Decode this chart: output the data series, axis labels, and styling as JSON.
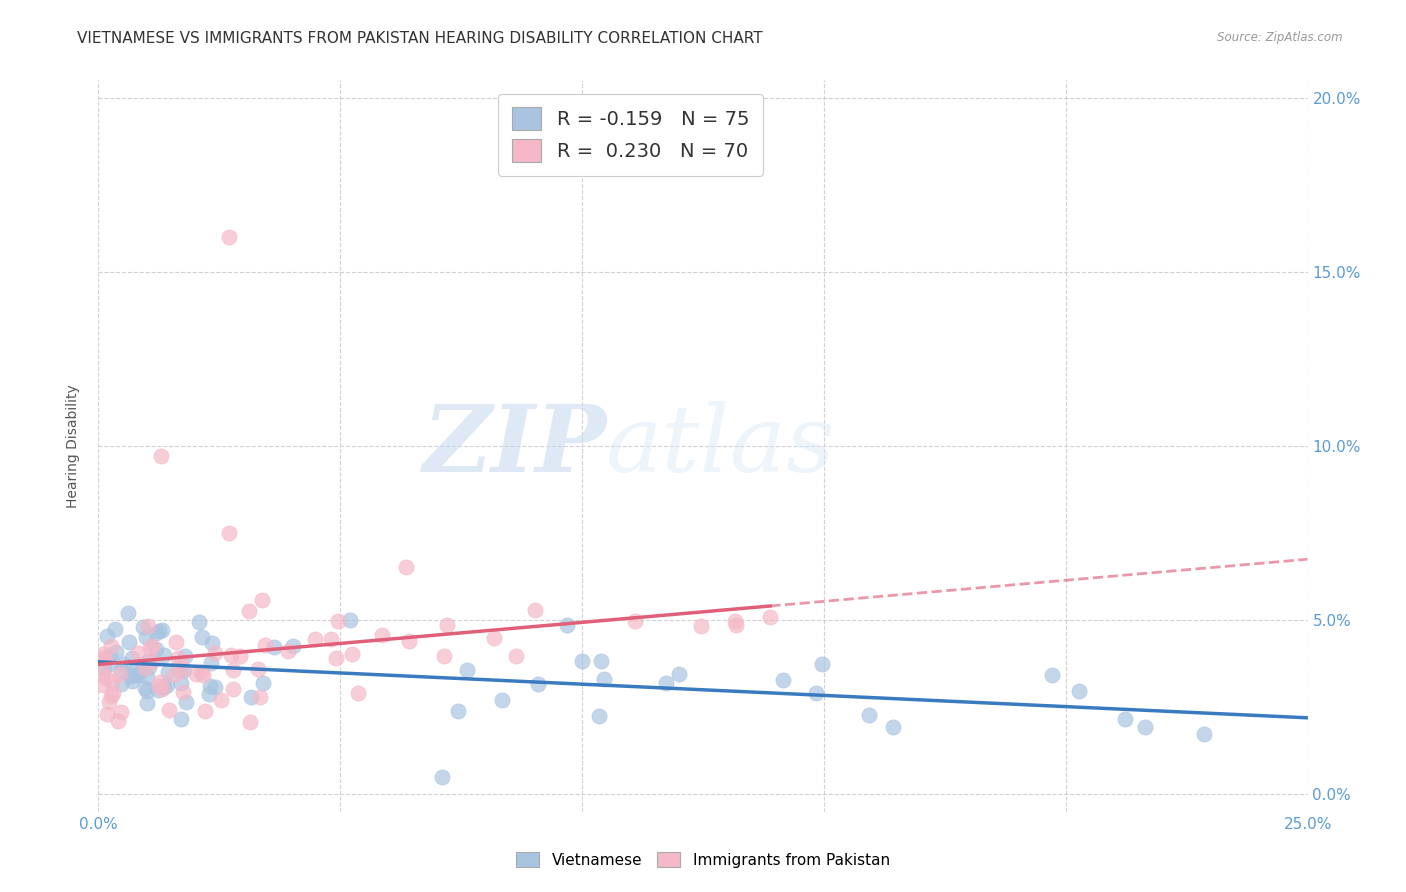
{
  "title": "VIETNAMESE VS IMMIGRANTS FROM PAKISTAN HEARING DISABILITY CORRELATION CHART",
  "source": "Source: ZipAtlas.com",
  "ylabel": "Hearing Disability",
  "xlim": [
    0.0,
    0.25
  ],
  "ylim": [
    -0.005,
    0.205
  ],
  "xticks": [
    0.0,
    0.05,
    0.1,
    0.15,
    0.2,
    0.25
  ],
  "yticks": [
    0.0,
    0.05,
    0.1,
    0.15,
    0.2
  ],
  "background_color": "#ffffff",
  "plot_bg_color": "#ffffff",
  "grid_color": "#cccccc",
  "viet_color": "#a8c4e0",
  "viet_line_color": "#3a7bbf",
  "pak_color": "#f4b8c8",
  "pak_line_color": "#e0607a",
  "right_tick_color": "#5b9bd5",
  "title_fontsize": 11,
  "axis_label_fontsize": 10,
  "tick_fontsize": 10,
  "watermark_zip": "ZIP",
  "watermark_atlas": "atlas",
  "legend_entries": [
    {
      "label_r": "R = -0.159",
      "label_n": "N = 75",
      "color": "#a8c4e0"
    },
    {
      "label_r": "R =  0.230",
      "label_n": "N = 70",
      "color": "#f4b8c8"
    }
  ],
  "bottom_legend": [
    {
      "label": "Vietnamese",
      "color": "#a8c4e0"
    },
    {
      "label": "Immigrants from Pakistan",
      "color": "#f4b8c8"
    }
  ]
}
